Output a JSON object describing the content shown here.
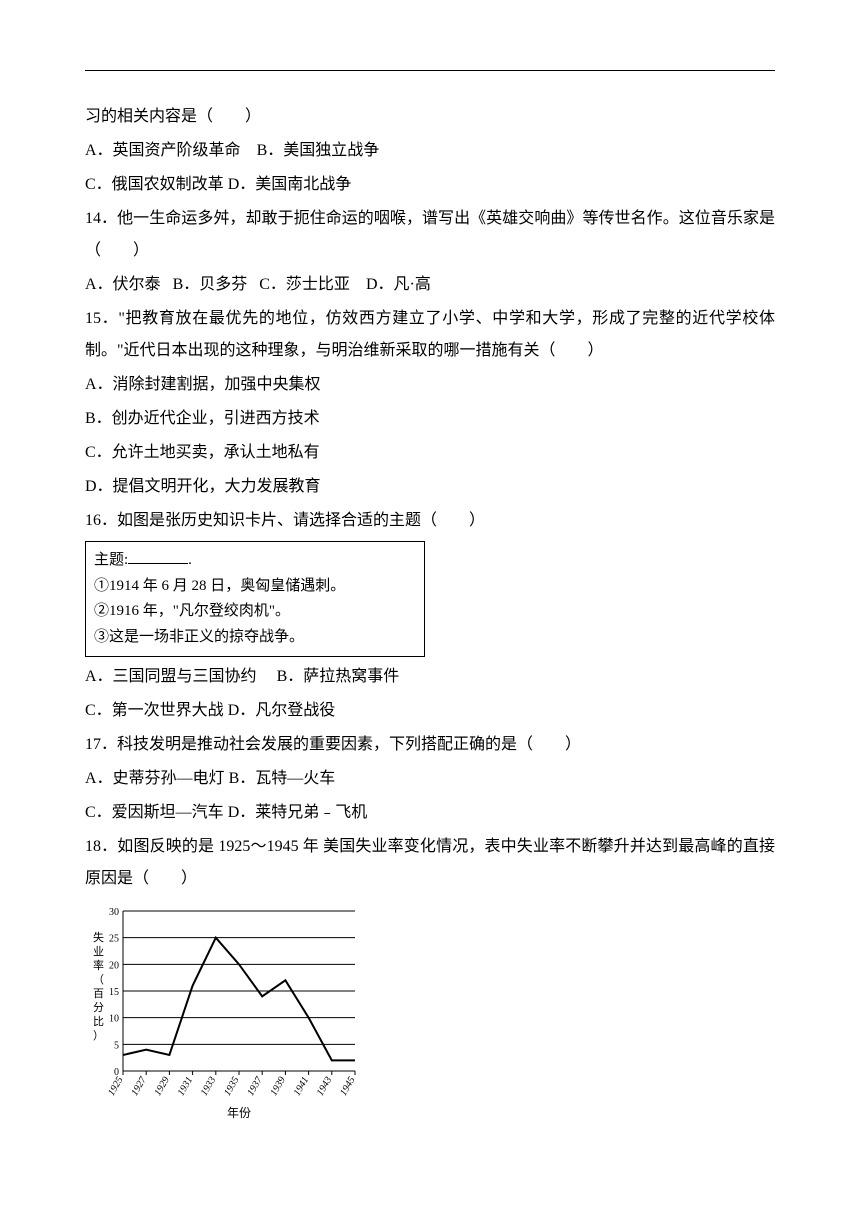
{
  "q13": {
    "stem_tail": "习的相关内容是（　　）",
    "optA": "A．英国资产阶级革命",
    "optB": "B．美国独立战争",
    "optC": "C．俄国农奴制改革",
    "optD": "D．美国南北战争"
  },
  "q14": {
    "stem": "14．他一生命运多舛，却敢于扼住命运的咽喉，谱写出《英雄交响曲》等传世名作。这位音乐家是（　　）",
    "optA": "A．伏尔泰",
    "optB": "B．贝多芬",
    "optC": "C．莎士比亚",
    "optD": "D．凡·高"
  },
  "q15": {
    "stem": "15．\"把教育放在最优先的地位，仿效西方建立了小学、中学和大学，形成了完整的近代学校体制。\"近代日本出现的这种理象，与明治维新采取的哪一措施有关（　　）",
    "optA": "A．消除封建割据，加强中央集权",
    "optB": "B．创办近代企业，引进西方技术",
    "optC": "C．允许土地买卖，承认土地私有",
    "optD": "D．提倡文明开化，大力发展教育"
  },
  "q16": {
    "stem": "16．如图是张历史知识卡片、请选择合适的主题（　　）",
    "card": {
      "title_label": "主题:",
      "line1": "①1914 年 6 月 28 日，奥匈皇储遇刺。",
      "line2": "②1916 年，\"凡尔登绞肉机\"。",
      "line3": "③这是一场非正义的掠夺战争。"
    },
    "optA": "A．三国同盟与三国协约",
    "optB": "B．萨拉热窝事件",
    "optC": "C．第一次世界大战",
    "optD": "D．凡尔登战役"
  },
  "q17": {
    "stem": "17．科技发明是推动社会发展的重要因素，下列搭配正确的是（　　）",
    "optA": "A．史蒂芬孙—电灯",
    "optB": "B．瓦特—火车",
    "optC": "C．爱因斯坦—汽车",
    "optD": "D．莱特兄弟﹣飞机"
  },
  "q18": {
    "stem": "18．如图反映的是 1925～1945 年 美国失业率变化情况，表中失业率不断攀升并达到最高峰的直接原因是（　　）",
    "chart": {
      "type": "line",
      "ylabel": "失业率（百分比）",
      "xlabel": "年份",
      "ylim": [
        0,
        30
      ],
      "ytick_step": 5,
      "yticks": [
        "0",
        "5",
        "10",
        "15",
        "20",
        "25",
        "30"
      ],
      "xticks": [
        "1925",
        "1927",
        "1929",
        "1931",
        "1933",
        "1935",
        "1937",
        "1939",
        "1941",
        "1943",
        "1945"
      ],
      "values": [
        3,
        4,
        3,
        16,
        25,
        20,
        14,
        17,
        10,
        2,
        2
      ],
      "line_color": "#000000",
      "line_width": 2,
      "grid_color": "#000000",
      "background_color": "#ffffff",
      "label_fontsize": 10
    }
  }
}
